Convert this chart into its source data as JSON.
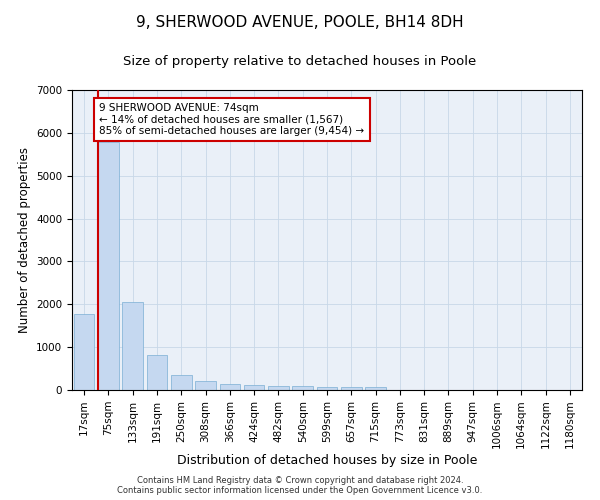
{
  "title": "9, SHERWOOD AVENUE, POOLE, BH14 8DH",
  "subtitle": "Size of property relative to detached houses in Poole",
  "xlabel": "Distribution of detached houses by size in Poole",
  "ylabel": "Number of detached properties",
  "categories": [
    "17sqm",
    "75sqm",
    "133sqm",
    "191sqm",
    "250sqm",
    "308sqm",
    "366sqm",
    "424sqm",
    "482sqm",
    "540sqm",
    "599sqm",
    "657sqm",
    "715sqm",
    "773sqm",
    "831sqm",
    "889sqm",
    "947sqm",
    "1006sqm",
    "1064sqm",
    "1122sqm",
    "1180sqm"
  ],
  "values": [
    1780,
    5780,
    2060,
    820,
    360,
    210,
    130,
    110,
    100,
    90,
    80,
    75,
    70,
    0,
    0,
    0,
    0,
    0,
    0,
    0,
    0
  ],
  "bar_color": "#c5d8f0",
  "bar_edge_color": "#7bafd4",
  "highlight_line_color": "#cc0000",
  "annotation_text": "9 SHERWOOD AVENUE: 74sqm\n← 14% of detached houses are smaller (1,567)\n85% of semi-detached houses are larger (9,454) →",
  "annotation_box_color": "#ffffff",
  "annotation_box_edge": "#cc0000",
  "ylim": [
    0,
    7000
  ],
  "yticks": [
    0,
    1000,
    2000,
    3000,
    4000,
    5000,
    6000,
    7000
  ],
  "grid_color": "#c8d8e8",
  "bg_color": "#eaf0f8",
  "footer_line1": "Contains HM Land Registry data © Crown copyright and database right 2024.",
  "footer_line2": "Contains public sector information licensed under the Open Government Licence v3.0.",
  "title_fontsize": 11,
  "subtitle_fontsize": 9.5,
  "xlabel_fontsize": 9,
  "ylabel_fontsize": 8.5,
  "tick_fontsize": 7.5,
  "annotation_fontsize": 7.5,
  "footer_fontsize": 6
}
